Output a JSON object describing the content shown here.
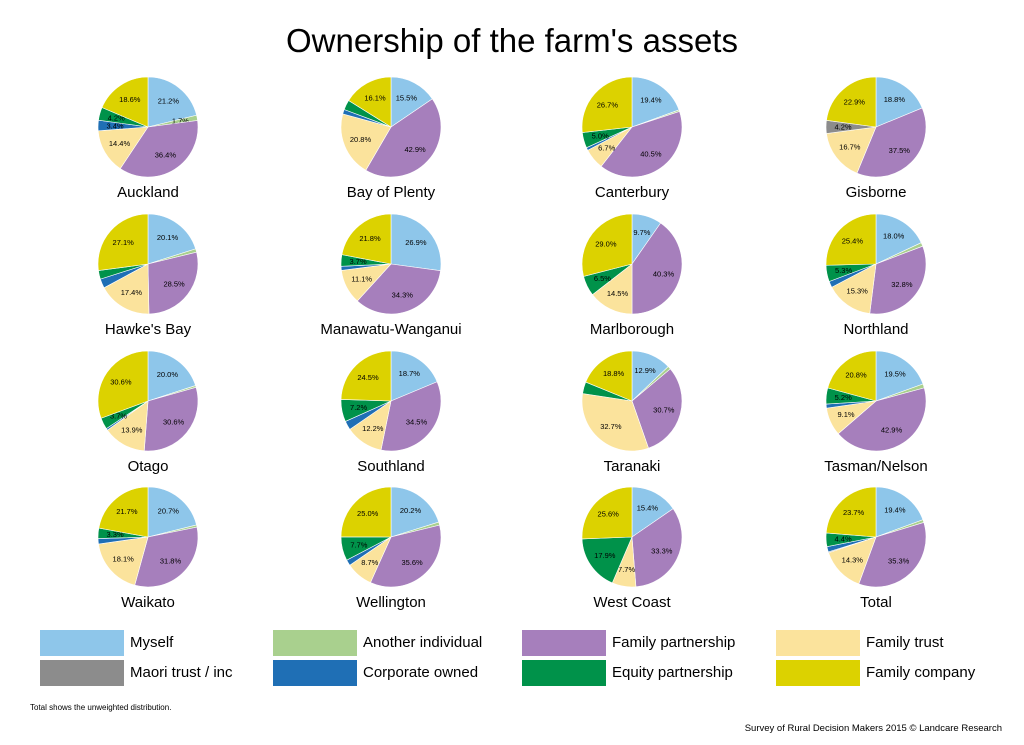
{
  "title": "Ownership of the farm's assets",
  "footnote": "Total shows the unweighted distribution.",
  "source": "Survey of Rural Decision Makers 2015 © Landcare Research",
  "colors": {
    "Myself": "#8ec6ea",
    "Another individual": "#a9d08e",
    "Family partnership": "#a67fbc",
    "Family trust": "#fbe39c",
    "Maori trust / inc": "#8c8c8c",
    "Corporate owned": "#1f6fb5",
    "Equity partnership": "#00924a",
    "Family company": "#dcd200"
  },
  "legend": [
    "Myself",
    "Another individual",
    "Family partnership",
    "Family trust",
    "Maori trust / inc",
    "Corporate owned",
    "Equity partnership",
    "Family company"
  ],
  "chart_data": {
    "type": "pie",
    "title": "Ownership of the farm's assets",
    "categories": [
      "Myself",
      "Another individual",
      "Family partnership",
      "Family trust",
      "Maori trust / inc",
      "Corporate owned",
      "Equity partnership",
      "Family company"
    ],
    "pies": [
      {
        "name": "Auckland",
        "values": [
          21.2,
          1.7,
          36.4,
          14.4,
          0.0,
          3.4,
          4.2,
          18.6
        ]
      },
      {
        "name": "Bay of Plenty",
        "values": [
          15.5,
          0.0,
          42.9,
          20.8,
          0.0,
          1.5,
          3.2,
          16.1
        ]
      },
      {
        "name": "Canterbury",
        "values": [
          19.4,
          0.5,
          40.5,
          6.7,
          0.0,
          0.9,
          5.0,
          26.7
        ]
      },
      {
        "name": "Gisborne",
        "values": [
          18.8,
          0.0,
          37.5,
          16.7,
          4.2,
          0.0,
          0.0,
          22.9
        ]
      },
      {
        "name": "Hawke's Bay",
        "values": [
          20.1,
          1.1,
          28.5,
          17.4,
          0.0,
          3.0,
          2.8,
          27.1
        ]
      },
      {
        "name": "Manawatu-Wanganui",
        "values": [
          26.9,
          0.0,
          34.3,
          11.1,
          0.0,
          1.3,
          3.7,
          21.8
        ]
      },
      {
        "name": "Marlborough",
        "values": [
          9.7,
          0.0,
          40.3,
          14.5,
          0.0,
          0.0,
          6.5,
          29.0
        ]
      },
      {
        "name": "Northland",
        "values": [
          18.0,
          1.2,
          32.8,
          15.3,
          0.0,
          2.0,
          5.3,
          25.4
        ]
      },
      {
        "name": "Otago",
        "values": [
          20.0,
          0.6,
          30.6,
          13.9,
          0.0,
          0.6,
          3.7,
          30.6
        ]
      },
      {
        "name": "Southland",
        "values": [
          18.7,
          0.0,
          34.5,
          12.2,
          0.0,
          2.9,
          7.2,
          24.5
        ]
      },
      {
        "name": "Taranaki",
        "values": [
          12.9,
          1.0,
          30.7,
          32.7,
          0.0,
          0.0,
          3.8,
          18.8
        ]
      },
      {
        "name": "Tasman/Nelson",
        "values": [
          19.5,
          1.3,
          42.9,
          9.1,
          0.0,
          1.3,
          5.2,
          20.8
        ]
      },
      {
        "name": "Waikato",
        "values": [
          20.7,
          0.7,
          31.8,
          18.1,
          0.0,
          1.7,
          3.3,
          21.7
        ]
      },
      {
        "name": "Wellington",
        "values": [
          20.2,
          1.0,
          35.6,
          8.7,
          0.0,
          1.9,
          7.7,
          25.0
        ]
      },
      {
        "name": "West Coast",
        "values": [
          15.4,
          0.0,
          33.3,
          7.7,
          0.0,
          0.0,
          17.9,
          25.6
        ]
      },
      {
        "name": "Total",
        "values": [
          19.4,
          0.9,
          35.3,
          14.3,
          0.3,
          1.7,
          4.4,
          23.7
        ]
      }
    ],
    "labels": [
      [
        "21.2%",
        "1.7%",
        "36.4%",
        "14.4%",
        "",
        "3.4%",
        "4.2%",
        "18.6%"
      ],
      [
        "15.5%",
        "",
        "42.9%",
        "20.8%",
        "",
        "",
        "",
        "16.1%"
      ],
      [
        "19.4%",
        "",
        "40.5%",
        "6.7%",
        "",
        "",
        "5.0%",
        "26.7%"
      ],
      [
        "18.8%",
        "",
        "37.5%",
        "16.7%",
        "4.2%",
        "",
        "",
        "22.9%"
      ],
      [
        "20.1%",
        "",
        "28.5%",
        "17.4%",
        "",
        "",
        "",
        "27.1%"
      ],
      [
        "26.9%",
        "",
        "34.3%",
        "11.1%",
        "",
        "",
        "3.7%",
        "21.8%"
      ],
      [
        "9.7%",
        "",
        "40.3%",
        "14.5%",
        "",
        "",
        "6.5%",
        "29.0%"
      ],
      [
        "18.0%",
        "",
        "32.8%",
        "15.3%",
        "",
        "",
        "5.3%",
        "25.4%"
      ],
      [
        "20.0%",
        "",
        "30.6%",
        "13.9%",
        "",
        "",
        "3.7%",
        "30.6%"
      ],
      [
        "18.7%",
        "",
        "34.5%",
        "12.2%",
        "",
        "",
        "7.2%",
        "24.5%"
      ],
      [
        "12.9%",
        "",
        "30.7%",
        "32.7%",
        "",
        "",
        "",
        "18.8%"
      ],
      [
        "19.5%",
        "",
        "42.9%",
        "9.1%",
        "",
        "",
        "5.2%",
        "20.8%"
      ],
      [
        "20.7%",
        "",
        "31.8%",
        "18.1%",
        "",
        "",
        "3.3%",
        "21.7%"
      ],
      [
        "20.2%",
        "",
        "35.6%",
        "8.7%",
        "",
        "",
        "7.7%",
        "25.0%"
      ],
      [
        "15.4%",
        "",
        "33.3%",
        "7.7%",
        "",
        "",
        "17.9%",
        "25.6%"
      ],
      [
        "19.4%",
        "",
        "35.3%",
        "14.3%",
        "",
        "",
        "4.4%",
        "23.7%"
      ]
    ]
  }
}
